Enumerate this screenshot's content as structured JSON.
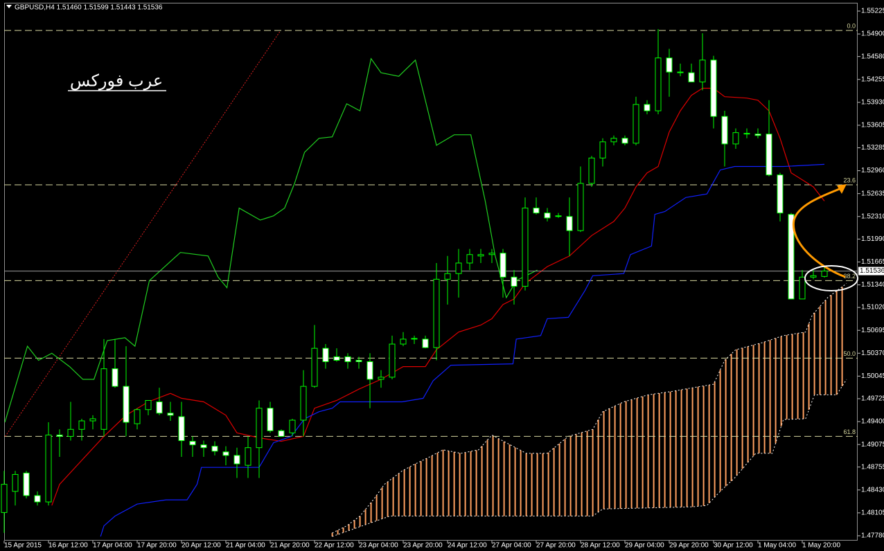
{
  "chart_data": {
    "type": "candlestick",
    "header": "GBPUSD,H4  1.51460 1.51599 1.51443 1.51536",
    "watermark": "عرب فوركس",
    "categories": [
      "15 Apr 2015",
      null,
      null,
      null,
      "16 Apr 12:00",
      null,
      null,
      null,
      "17 Apr 04:00",
      null,
      null,
      null,
      "17 Apr 20:00",
      null,
      null,
      null,
      "20 Apr 12:00",
      null,
      null,
      null,
      "21 Apr 04:00",
      null,
      null,
      null,
      "21 Apr 20:00",
      null,
      null,
      null,
      "22 Apr 12:00",
      null,
      null,
      null,
      "23 Apr 04:00",
      null,
      null,
      null,
      "23 Apr 20:00",
      null,
      null,
      null,
      "24 Apr 12:00",
      null,
      null,
      null,
      "27 Apr 04:00",
      null,
      null,
      null,
      "27 Apr 20:00",
      null,
      null,
      null,
      "28 Apr 12:00",
      null,
      null,
      null,
      "29 Apr 04:00",
      null,
      null,
      null,
      "29 Apr 20:00",
      null,
      null,
      null,
      "30 Apr 12:00",
      null,
      null,
      null,
      "1 May 04:00",
      null,
      null,
      null,
      "1 May 20:00",
      null,
      null
    ],
    "open": [
      1.4811,
      1.4841,
      1.4867,
      1.4835,
      1.4826,
      1.4921,
      1.4919,
      1.4929,
      1.4941,
      1.4929,
      1.5015,
      1.499,
      1.4937,
      1.4957,
      1.4968,
      1.4952,
      1.4947,
      1.4912,
      1.4907,
      1.4905,
      1.4897,
      1.4892,
      1.4878,
      1.4903,
      1.4959,
      1.4927,
      1.4924,
      1.4942,
      1.499,
      1.5044,
      1.5032,
      1.5032,
      1.5027,
      1.5025,
      1.5,
      1.5003,
      1.505,
      1.5057,
      1.5057,
      1.5045,
      1.5142,
      1.515,
      1.5165,
      1.5175,
      1.5177,
      1.5179,
      1.5145,
      1.5132,
      1.5243,
      1.5236,
      1.5232,
      1.5231,
      1.5211,
      1.5278,
      1.5314,
      1.5337,
      1.5342,
      1.5335,
      1.539,
      1.5381,
      1.5456,
      1.5436,
      1.5435,
      1.5422,
      1.5453,
      1.5373,
      1.5334,
      1.5349,
      1.5348,
      1.5348,
      1.529,
      1.5234,
      1.5114,
      1.5145,
      1.5146
    ],
    "high": [
      1.487,
      1.487,
      1.487,
      1.4841,
      1.4939,
      1.4929,
      1.4968,
      1.4944,
      1.4949,
      1.5057,
      1.5057,
      1.5047,
      1.4959,
      1.497,
      1.4988,
      1.4968,
      1.4968,
      1.4919,
      1.4913,
      1.4912,
      1.4905,
      1.4903,
      1.4919,
      1.497,
      1.4968,
      1.4929,
      1.4944,
      1.5013,
      1.5077,
      1.505,
      1.5044,
      1.5037,
      1.5032,
      1.5037,
      1.5013,
      1.5062,
      1.5067,
      1.5062,
      1.5062,
      1.5165,
      1.5175,
      1.5185,
      1.5185,
      1.5185,
      1.5185,
      1.5185,
      1.5155,
      1.5258,
      1.5258,
      1.5243,
      1.5236,
      1.5258,
      1.5302,
      1.5317,
      1.5342,
      1.5346,
      1.5346,
      1.5401,
      1.5396,
      1.5497,
      1.5469,
      1.5448,
      1.5448,
      1.5491,
      1.5459,
      1.5381,
      1.5356,
      1.5356,
      1.5356,
      1.5396,
      1.5293,
      1.5236,
      1.5155,
      1.5155,
      1.51599
    ],
    "low": [
      1.4782,
      1.4821,
      1.4831,
      1.4821,
      1.4821,
      1.489,
      1.4913,
      1.4913,
      1.4929,
      1.4919,
      1.4988,
      1.4919,
      1.4929,
      1.4949,
      1.4949,
      1.4941,
      1.489,
      1.489,
      1.489,
      1.4892,
      1.4878,
      1.486,
      1.486,
      1.486,
      1.4924,
      1.4919,
      1.4919,
      1.4919,
      1.4988,
      1.5015,
      1.5025,
      1.5015,
      1.5015,
      1.4959,
      1.4988,
      1.5,
      1.5047,
      1.505,
      1.5044,
      1.5027,
      1.5106,
      1.5116,
      1.5155,
      1.5165,
      1.5165,
      1.5116,
      1.5106,
      1.5126,
      1.5234,
      1.5224,
      1.5229,
      1.5175,
      1.5209,
      1.5273,
      1.5302,
      1.5332,
      1.5332,
      1.5332,
      1.5376,
      1.5376,
      1.5401,
      1.543,
      1.5422,
      1.541,
      1.5356,
      1.5302,
      1.5327,
      1.5342,
      1.5342,
      1.5288,
      1.5224,
      1.5114,
      1.5114,
      1.5142,
      1.51443
    ],
    "close": [
      1.4851,
      1.4865,
      1.4835,
      1.4826,
      1.4921,
      1.4919,
      1.4929,
      1.4941,
      1.4944,
      1.5015,
      1.499,
      1.4939,
      1.4957,
      1.497,
      1.4952,
      1.4949,
      1.4913,
      1.4907,
      1.4903,
      1.4898,
      1.4892,
      1.488,
      1.4903,
      1.4959,
      1.4927,
      1.4919,
      1.4942,
      1.499,
      1.5044,
      1.5025,
      1.5027,
      1.5025,
      1.5025,
      1.5,
      1.5003,
      1.505,
      1.5057,
      1.5058,
      1.5045,
      1.5142,
      1.515,
      1.5165,
      1.5177,
      1.5177,
      1.5179,
      1.5145,
      1.5132,
      1.5243,
      1.5236,
      1.5229,
      1.5231,
      1.5211,
      1.5278,
      1.5314,
      1.5337,
      1.5342,
      1.5335,
      1.539,
      1.5381,
      1.5456,
      1.5436,
      1.5436,
      1.5422,
      1.5453,
      1.5373,
      1.5334,
      1.535,
      1.5348,
      1.5346,
      1.529,
      1.5236,
      1.5114,
      1.5145,
      1.5147,
      1.51536
    ],
    "up_color": "#00ff00",
    "down_color": "#ffffff",
    "ylim": [
      1.47711,
      1.55333
    ],
    "yticks": [
      1.55225,
      {
        "value": 1.549,
        "label": "1.54900"
      },
      {
        "value": 1.5458,
        "label": "1.54580"
      },
      1.54255,
      {
        "value": 1.5393,
        "label": "1.53930"
      },
      1.53605,
      1.53285,
      {
        "value": 1.5296,
        "label": "1.52960"
      },
      1.52635,
      {
        "value": 1.5231,
        "label": "1.52310"
      },
      {
        "value": 1.5199,
        "label": "1.51990"
      },
      1.51665,
      {
        "value": 1.5134,
        "label": "1.51340"
      },
      {
        "value": 1.5102,
        "label": "1.51020"
      },
      1.50695,
      {
        "value": 1.5037,
        "label": "1.50370"
      },
      1.50045,
      1.49725,
      {
        "value": 1.494,
        "label": "1.49400"
      },
      1.49075,
      1.48755,
      {
        "value": 1.4843,
        "label": "1.48430"
      },
      1.48105,
      {
        "value": 1.4778,
        "label": "1.47780"
      }
    ],
    "current_price": {
      "value": 1.51536,
      "label": "1.51536"
    },
    "fib_levels": [
      {
        "label": "0.0",
        "price": 1.5495
      },
      {
        "label": "23.6",
        "price": 1.5276
      },
      {
        "label": "38.2",
        "price": 1.514
      },
      {
        "label": "50.0",
        "price": 1.503
      },
      {
        "label": "61.8",
        "price": 1.4919
      }
    ],
    "fib_color": "#d8d8a0",
    "trendline": {
      "color": "#e02020",
      "x": [
        0.1,
        24.9
      ],
      "values": [
        1.4919,
        1.5494
      ]
    },
    "lines": [
      {
        "color": "#e00000",
        "x": [
          4.3,
          5,
          7,
          9,
          11,
          13,
          15,
          16,
          18,
          20,
          21,
          23,
          25,
          27,
          28,
          30,
          32,
          34,
          36,
          38,
          39,
          41,
          43,
          44,
          45,
          46,
          47,
          49,
          51,
          53,
          55,
          56,
          57,
          58,
          59,
          60,
          61,
          62,
          63,
          64,
          65,
          67,
          68,
          69,
          70,
          71,
          72,
          73,
          74
        ],
        "values": [
          1.4821,
          1.4851,
          1.4885,
          1.4919,
          1.4949,
          1.4968,
          1.498,
          1.4973,
          1.4968,
          1.4949,
          1.4924,
          1.4917,
          1.4912,
          1.4919,
          1.4959,
          1.497,
          1.4986,
          1.5,
          1.5018,
          1.5018,
          1.5042,
          1.5067,
          1.5077,
          1.5086,
          1.5106,
          1.5114,
          1.5136,
          1.516,
          1.5175,
          1.5204,
          1.5224,
          1.5243,
          1.5273,
          1.5293,
          1.5302,
          1.5351,
          1.5381,
          1.5403,
          1.5413,
          1.5413,
          1.5401,
          1.5399,
          1.5396,
          1.5381,
          1.5342,
          1.5293,
          1.5283,
          1.5273,
          1.5253
        ]
      },
      {
        "color": "#1020ff",
        "x": [
          8.7,
          9,
          10,
          12,
          14.6,
          16.5,
          17.4,
          17.8,
          23,
          24.3,
          25.9,
          27.1,
          28.4,
          29.6,
          30.3,
          33.4,
          35.9,
          37.8,
          38.7,
          40.3,
          45.9,
          46.2,
          48.4,
          49,
          50.9,
          52.4,
          53.1,
          55.9,
          56.5,
          58.4,
          58.7,
          59.6,
          61.5,
          63.4,
          64.6,
          65.9,
          68.4,
          70.3,
          74
        ],
        "values": [
          1.4777,
          1.4792,
          1.4806,
          1.4823,
          1.4829,
          1.4829,
          1.4851,
          1.4875,
          1.4875,
          1.491,
          1.4919,
          1.4944,
          1.4954,
          1.4959,
          1.4968,
          1.4968,
          1.4968,
          1.4973,
          1.4998,
          1.502,
          1.5022,
          1.5057,
          1.5062,
          1.5086,
          1.5088,
          1.5126,
          1.5147,
          1.515,
          1.5177,
          1.5189,
          1.5234,
          1.5238,
          1.5258,
          1.5263,
          1.5297,
          1.5302,
          1.5302,
          1.5302,
          1.5305
        ]
      },
      {
        "color": "#20d020",
        "x": [
          0.06,
          2.1,
          3.1,
          4.3,
          5.9,
          7.1,
          8.1,
          9.3,
          10.9,
          11.8,
          13.1,
          15.9,
          18.4,
          19.3,
          20.1,
          21.2,
          23.1,
          24.3,
          25.3,
          26.2,
          27.1,
          28.4,
          29.6,
          30.9,
          32.1,
          33.1,
          34,
          35.6,
          37.1,
          39,
          40.6,
          42.1,
          43.4,
          44.3,
          45.3,
          46.2,
          48.1
        ],
        "values": [
          1.4939,
          1.5047,
          1.5027,
          1.5037,
          1.5018,
          1.5,
          1.5,
          1.5055,
          1.5059,
          1.5047,
          1.514,
          1.518,
          1.5175,
          1.5145,
          1.513,
          1.5243,
          1.5226,
          1.5232,
          1.5243,
          1.5278,
          1.5322,
          1.5342,
          1.5344,
          1.5391,
          1.5381,
          1.5455,
          1.5435,
          1.543,
          1.5453,
          1.5332,
          1.5347,
          1.5347,
          1.5253,
          1.5175,
          1.5116,
          1.514,
          1.5155
        ]
      }
    ],
    "cloud": {
      "color": "#ffa060",
      "span_a": {
        "x": [
          29.6,
          30.9,
          32.1,
          33.4,
          34.3,
          35.9,
          37.1,
          38.4,
          39.6,
          41.2,
          42.8,
          44,
          45.3,
          47.1,
          49,
          50.9,
          53.1,
          54,
          55.9,
          58.1,
          60.3,
          62.1,
          64,
          65,
          66,
          68.4,
          70.3,
          72.3,
          72.9,
          74.3,
          76
        ],
        "values": [
          1.4782,
          1.4792,
          1.4806,
          1.4831,
          1.4851,
          1.487,
          1.488,
          1.489,
          1.49,
          1.4895,
          1.49,
          1.4921,
          1.491,
          1.4895,
          1.4895,
          1.4919,
          1.4929,
          1.4954,
          1.4968,
          1.4978,
          1.4983,
          1.4988,
          1.4993,
          1.5027,
          1.5042,
          1.5052,
          1.5062,
          1.5067,
          1.5091,
          1.5116,
          1.5136
        ]
      },
      "span_b": {
        "x": [
          29.6,
          34.8,
          53.1,
          54,
          62.1,
          63.4,
          64.6,
          65.9,
          67.8,
          69.3,
          70.3,
          72.3,
          73.1,
          75.1,
          76
        ],
        "values": [
          1.4777,
          1.4806,
          1.4806,
          1.4816,
          1.4819,
          1.4821,
          1.4841,
          1.486,
          1.4895,
          1.4895,
          1.4943,
          1.4944,
          1.4978,
          1.4978,
          1.5
        ]
      }
    }
  }
}
